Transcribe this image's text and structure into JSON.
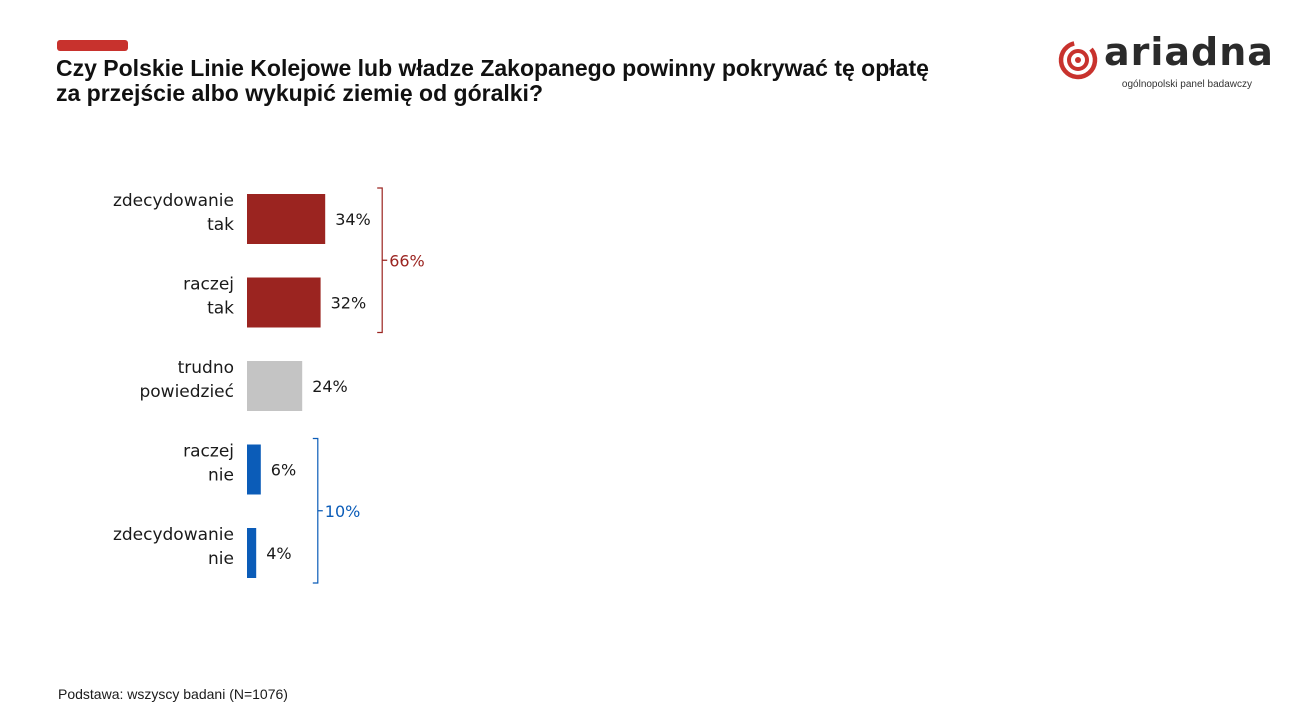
{
  "header": {
    "title_line1": "Czy Polskie Linie Kolejowe lub władze Zakopanego powinny pokrywać tę opłatę",
    "title_line2": "za przejście albo wykupić ziemię od góralki?"
  },
  "logo": {
    "wordmark": "ariadna",
    "tagline": "ogólnopolski panel badawczy",
    "color_mark": "#c8322d",
    "color_text": "#2b2b2b"
  },
  "chart_data": {
    "type": "bar",
    "orientation": "horizontal",
    "unit": "%",
    "categories": [
      [
        "zdecydowanie",
        "tak"
      ],
      [
        "raczej",
        "tak"
      ],
      [
        "trudno",
        "powiedzieć"
      ],
      [
        "raczej",
        "nie"
      ],
      [
        "zdecydowanie",
        "nie"
      ]
    ],
    "values": [
      34,
      32,
      24,
      6,
      4
    ],
    "value_labels": [
      "34%",
      "32%",
      "24%",
      "6%",
      "4%"
    ],
    "colors": [
      "#9b2420",
      "#9b2420",
      "#c4c4c4",
      "#0b5cb8",
      "#0b5cb8"
    ],
    "groups": [
      {
        "from": 0,
        "to": 1,
        "label": "66%",
        "color": "#9b2420"
      },
      {
        "from": 3,
        "to": 4,
        "label": "10%",
        "color": "#0b5cb8"
      }
    ],
    "xlim": [
      0,
      100
    ],
    "grid": false,
    "legend": false
  },
  "footer": {
    "base_note": "Podstawa: wszyscy badani (N=1076)"
  }
}
